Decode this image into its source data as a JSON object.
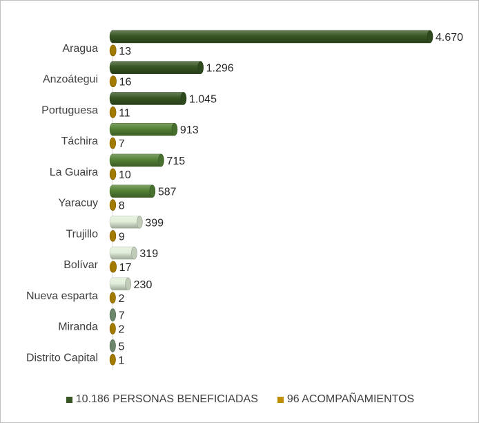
{
  "chart_data": {
    "type": "bar",
    "orientation": "horizontal",
    "categories": [
      "Aragua",
      "Anzoátegui",
      "Portuguesa",
      "Táchira",
      "La Guaira",
      "Yaracuy",
      "Trujillo",
      "Bolívar",
      "Nueva esparta",
      "Miranda",
      "Distrito Capital"
    ],
    "series": [
      {
        "name": "10.186 PERSONAS BENEFICIADAS",
        "values": [
          4670,
          1296,
          1045,
          913,
          715,
          587,
          399,
          319,
          230,
          7,
          5
        ],
        "labels": [
          "4.670",
          "1.296",
          "1.045",
          "913",
          "715",
          "587",
          "399",
          "319",
          "230",
          "7",
          "5"
        ],
        "color": "#375623",
        "point_colors": [
          "#375623",
          "#375623",
          "#375623",
          "#548235",
          "#548235",
          "#548235",
          "#e2efd9",
          "#e2efd9",
          "#e2efd9",
          "#7f9f7f",
          "#7f9f7f"
        ]
      },
      {
        "name": "96 ACOMPAÑAMIENTOS",
        "values": [
          13,
          16,
          11,
          7,
          10,
          8,
          9,
          17,
          2,
          2,
          1
        ],
        "labels": [
          "13",
          "16",
          "11",
          "7",
          "10",
          "8",
          "9",
          "17",
          "2",
          "2",
          "1"
        ],
        "color": "#bf8f00"
      }
    ],
    "xlim": [
      0,
      4670
    ],
    "grid": false,
    "legend_position": "bottom"
  }
}
